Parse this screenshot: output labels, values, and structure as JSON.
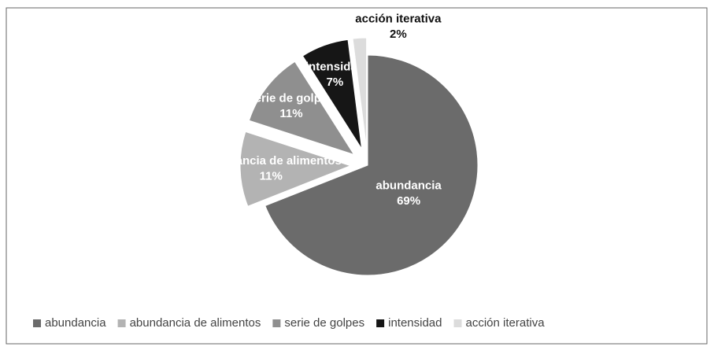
{
  "chart_data": {
    "type": "pie",
    "categories": [
      "abundancia",
      "abundancia de alimentos",
      "serie de golpes",
      "intensidad",
      "acción iterativa"
    ],
    "values": [
      69,
      11,
      11,
      7,
      2
    ],
    "value_labels": [
      "69%",
      "11%",
      "11%",
      "7%",
      "2%"
    ],
    "colors": [
      "#6b6b6b",
      "#b3b3b3",
      "#8f8f8f",
      "#161616",
      "#dcdcdc"
    ],
    "legend": "bottom"
  }
}
